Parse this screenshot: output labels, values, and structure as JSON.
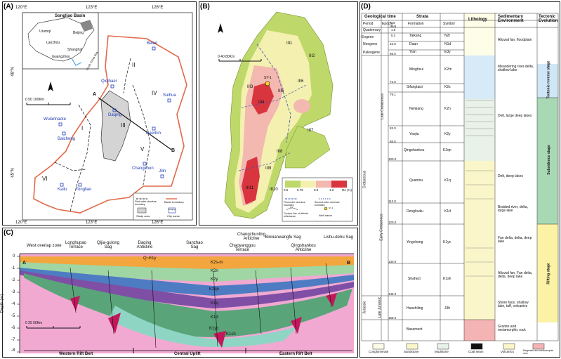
{
  "panel_a": {
    "label": "(A)",
    "top_lon": [
      "120°E",
      "123°E",
      "126°E"
    ],
    "bottom_lon": [
      "120°E",
      "123°E",
      "126°E"
    ],
    "lat": [
      "48°N",
      "45°N"
    ],
    "inset": {
      "title": "Songliao Basin",
      "cities": [
        "Urumqi",
        "Beijing",
        "Lanzhou",
        "Shanghai",
        "Guangzhou"
      ],
      "sea": "South China Sea"
    },
    "cities": [
      "Qiqihaer",
      "Beian",
      "Suihua",
      "Daqing",
      "Haerbin",
      "Wulanhaote",
      "Baicheng",
      "Changchun",
      "Jilin",
      "Kailu",
      "Tongliao"
    ],
    "zones": [
      "I",
      "II",
      "III",
      "IV",
      "V",
      "VI"
    ],
    "section_ends": [
      "A",
      "B"
    ],
    "scale": "0   50  100Km",
    "legend": {
      "first_order": "First-order structure boundary",
      "basin": "Basin boundary",
      "study": "Study area",
      "city": "City name",
      "city_sample": "Daqing"
    }
  },
  "panel_b": {
    "label": "(B)",
    "units": [
      "III1",
      "III2",
      "III3",
      "III4",
      "III5",
      "III6",
      "III7",
      "III8",
      "III9",
      "III10",
      "III11"
    ],
    "well": "SY-1",
    "scale": "0       40      80Km",
    "ro_ticks": [
      "0.5",
      "0.75",
      "0.9",
      "1.2",
      "Ro (%)"
    ],
    "legend": {
      "first_order": "First-order structure boundary",
      "second_order": "Second-order structure boundary",
      "contour": "Contour line of vitrinite reflectance",
      "well": "Well name",
      "well_sample": "SY-1",
      "contour_sample": "0.5"
    }
  },
  "panel_c": {
    "label": "(C)",
    "units": [
      "West overlap zone",
      "Longhupao Terrace",
      "Qijia-gulong Sag",
      "Daqing Anticline",
      "Sanzhao Sag",
      "Changchunling Anticline",
      "Chaoyanggou Terrace",
      "Binxianwangfu Sag",
      "Qingshankou Anticline",
      "Lishu-dehu Sag"
    ],
    "ends": [
      "A",
      "B"
    ],
    "ylabel": "Depth (m)",
    "yticks": [
      "0",
      "-1",
      "-2",
      "-3",
      "-4",
      "-5",
      "-6",
      "-7",
      "-8"
    ],
    "formations": [
      "Q~E1y",
      "K2s-m",
      "K2n",
      "K2y",
      "K2qn",
      "K1q",
      "K1d",
      "K1yc",
      "K1sh"
    ],
    "scale": "0     25    50Km",
    "belts": [
      "Western Rift Belt",
      "Central Uplift",
      "Eastern Rift Belt"
    ]
  },
  "panel_d": {
    "label": "(D)",
    "headers": {
      "geotime": "Geological time",
      "strata": "Strata",
      "lithology": "Lithology",
      "sed_env": "Sedimentary Environment",
      "tectonic": "Tectonic Evolution",
      "period": "Period",
      "epoch": "Epoch",
      "age": "Age (Ma)",
      "formation": "Formation",
      "symbol": "Symbol"
    },
    "rows": [
      {
        "period": "Quaternary",
        "age": "1.8",
        "formation": "",
        "symbol": "",
        "env": ""
      },
      {
        "period": "Neogene",
        "age": "5.3",
        "formation": "Taikang",
        "symbol": "N2t",
        "env": ""
      },
      {
        "period": "",
        "age": "23.0",
        "formation": "Daan",
        "symbol": "N1d",
        "env": "Alluvial fan, floodplain"
      },
      {
        "period": "Paleogene",
        "age": "65.0",
        "formation": "Yian",
        "symbol": "E3y",
        "env": ""
      },
      {
        "period": "",
        "age": "",
        "formation": "Minghsui",
        "symbol": "K2m",
        "env": "Meandering river delta, shallow lake"
      },
      {
        "period": "",
        "age": "73.0",
        "formation": "Sifangtaizi",
        "symbol": "K2s",
        "env": ""
      },
      {
        "period": "",
        "age": "79.1",
        "formation": "Nenjiang",
        "symbol": "K2n",
        "env": "Delt, large deep lakes"
      },
      {
        "period": "",
        "age": "83.0",
        "formation": "Yaojia",
        "symbol": "K2y",
        "env": ""
      },
      {
        "period": "",
        "age": "88.5",
        "formation": "Qingshankou",
        "symbol": "K2qn",
        "env": ""
      },
      {
        "period": "",
        "age": "100.0",
        "formation": "Quantou",
        "symbol": "K1q",
        "env": "Delt, deep lakes"
      },
      {
        "period": "",
        "age": "112.0",
        "formation": "Denglouku",
        "symbol": "K1d",
        "env": "Braided river, delta, large lake"
      },
      {
        "period": "",
        "age": "120.0",
        "formation": "Yingcheng",
        "symbol": "K1yc",
        "env": "Fan delta, delta, deep lake"
      },
      {
        "period": "",
        "age": "130.0",
        "formation": "Shahezi",
        "symbol": "K1sh",
        "env": "Alluvial fan, Fan delta, delta, deep lake"
      },
      {
        "period": "",
        "age": "146.0",
        "formation": "Huoshiling",
        "symbol": "J3h",
        "env": "Shore face, shallow lake, tuff, volcanics"
      },
      {
        "period": "",
        "age": "158.0",
        "formation": "Basement",
        "symbol": "",
        "env": "Granite and metamorphic rock"
      }
    ],
    "periods_vertical": [
      "Eogene",
      "Cretaceous",
      "Jurassic"
    ],
    "epochs_vertical": [
      "Late Cretaceous",
      "Early Cretaceous",
      "Late Jurassic"
    ],
    "stages": [
      "Tectonic reverse stage",
      "Subsidence stage",
      "Rifting stage"
    ],
    "legend": [
      "Conglomerate",
      "Sandstone",
      "Mudstone",
      "Coal seam",
      "Volcanics",
      "Magmatic and metamorphic rock"
    ]
  }
}
